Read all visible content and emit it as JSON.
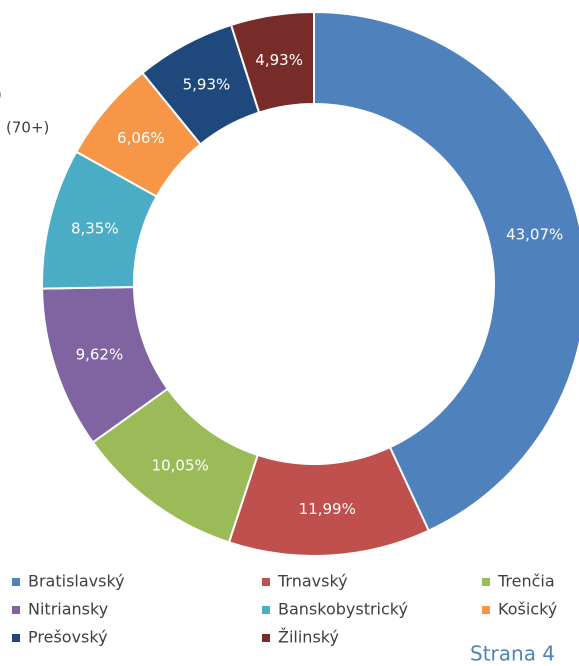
{
  "chart_data": {
    "type": "donut",
    "annotations": [
      ")",
      "(70+)"
    ],
    "categories": [
      "Bratislavský",
      "Trnavský",
      "Trenčia",
      "Nitriansky",
      "Banskobystrický",
      "Košický",
      "Prešovský",
      "Žilinský"
    ],
    "values": [
      43.07,
      11.99,
      10.05,
      9.62,
      8.35,
      6.06,
      5.93,
      4.93
    ],
    "value_labels": [
      "43,07%",
      "11,99%",
      "10,05%",
      "9,62%",
      "8,35%",
      "6,06%",
      "5,93%",
      "4,93%"
    ],
    "colors": [
      "#4f81bd",
      "#c0504d",
      "#9bbb59",
      "#8064a2",
      "#4bacc6",
      "#f79646",
      "#1f497d",
      "#772c2a"
    ],
    "legend": "bottom",
    "footer": "Strana 4"
  }
}
